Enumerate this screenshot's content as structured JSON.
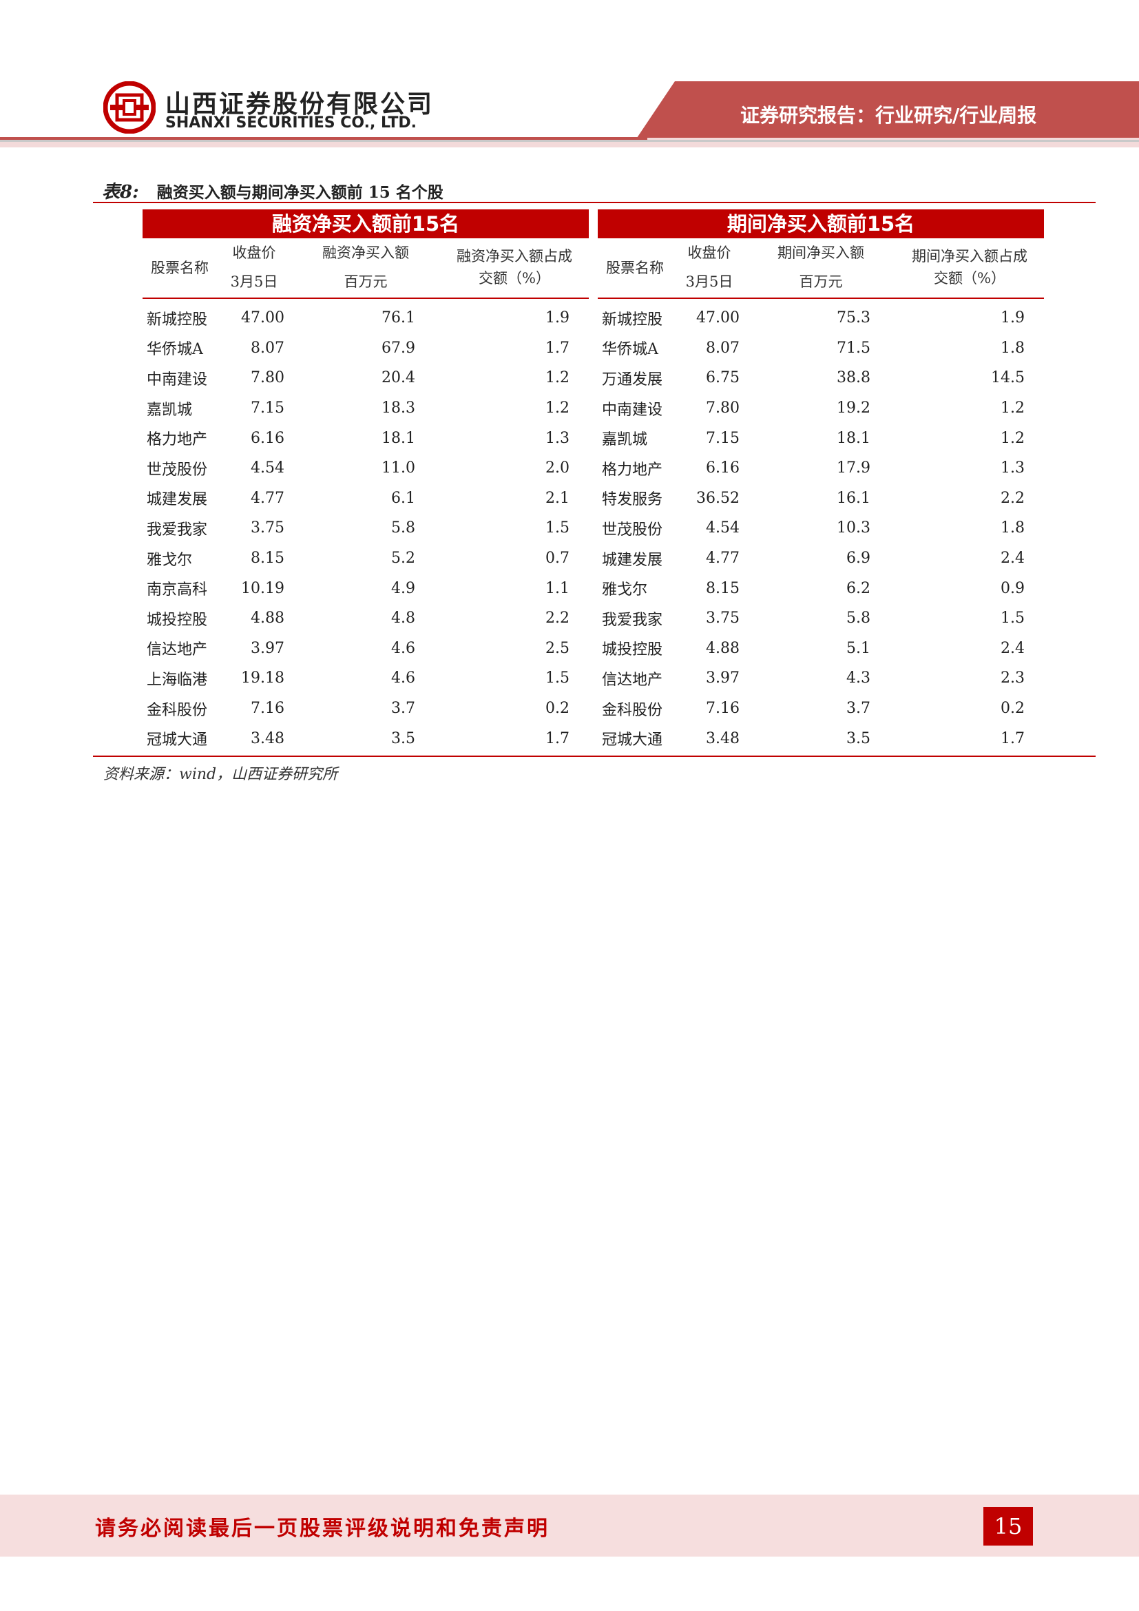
{
  "header": {
    "company_cn": "山西证券股份有限公司",
    "company_en": "SHANXI SECURITIES CO., LTD.",
    "report_type": "证券研究报告：行业研究/行业周报",
    "brand_color": "#c00000"
  },
  "caption": {
    "label": "表8:",
    "title": "融资买入额与期间净买入额前 15 名个股"
  },
  "left_table": {
    "title": "融资净买入额前15名",
    "headers": {
      "name": "股票名称",
      "price": "收盘价",
      "price_date": "3月5日",
      "buy": "融资净买入额",
      "buy_unit": "百万元",
      "ratio_line1": "融资净买入额占成",
      "ratio_line2": "交额（%）"
    },
    "rows": [
      {
        "name": "新城控股",
        "price": "47.00",
        "buy": "76.1",
        "ratio": "1.9"
      },
      {
        "name": "华侨城A",
        "price": "8.07",
        "buy": "67.9",
        "ratio": "1.7"
      },
      {
        "name": "中南建设",
        "price": "7.80",
        "buy": "20.4",
        "ratio": "1.2"
      },
      {
        "name": "嘉凯城",
        "price": "7.15",
        "buy": "18.3",
        "ratio": "1.2"
      },
      {
        "name": "格力地产",
        "price": "6.16",
        "buy": "18.1",
        "ratio": "1.3"
      },
      {
        "name": "世茂股份",
        "price": "4.54",
        "buy": "11.0",
        "ratio": "2.0"
      },
      {
        "name": "城建发展",
        "price": "4.77",
        "buy": "6.1",
        "ratio": "2.1"
      },
      {
        "name": "我爱我家",
        "price": "3.75",
        "buy": "5.8",
        "ratio": "1.5"
      },
      {
        "name": "雅戈尔",
        "price": "8.15",
        "buy": "5.2",
        "ratio": "0.7"
      },
      {
        "name": "南京高科",
        "price": "10.19",
        "buy": "4.9",
        "ratio": "1.1"
      },
      {
        "name": "城投控股",
        "price": "4.88",
        "buy": "4.8",
        "ratio": "2.2"
      },
      {
        "name": "信达地产",
        "price": "3.97",
        "buy": "4.6",
        "ratio": "2.5"
      },
      {
        "name": "上海临港",
        "price": "19.18",
        "buy": "4.6",
        "ratio": "1.5"
      },
      {
        "name": "金科股份",
        "price": "7.16",
        "buy": "3.7",
        "ratio": "0.2"
      },
      {
        "name": "冠城大通",
        "price": "3.48",
        "buy": "3.5",
        "ratio": "1.7"
      }
    ]
  },
  "right_table": {
    "title": "期间净买入额前15名",
    "headers": {
      "name": "股票名称",
      "price": "收盘价",
      "price_date": "3月5日",
      "buy": "期间净买入额",
      "buy_unit": "百万元",
      "ratio_line1": "期间净买入额占成",
      "ratio_line2": "交额（%）"
    },
    "rows": [
      {
        "name": "新城控股",
        "price": "47.00",
        "buy": "75.3",
        "ratio": "1.9"
      },
      {
        "name": "华侨城A",
        "price": "8.07",
        "buy": "71.5",
        "ratio": "1.8"
      },
      {
        "name": "万通发展",
        "price": "6.75",
        "buy": "38.8",
        "ratio": "14.5"
      },
      {
        "name": "中南建设",
        "price": "7.80",
        "buy": "19.2",
        "ratio": "1.2"
      },
      {
        "name": "嘉凯城",
        "price": "7.15",
        "buy": "18.1",
        "ratio": "1.2"
      },
      {
        "name": "格力地产",
        "price": "6.16",
        "buy": "17.9",
        "ratio": "1.3"
      },
      {
        "name": "特发服务",
        "price": "36.52",
        "buy": "16.1",
        "ratio": "2.2"
      },
      {
        "name": "世茂股份",
        "price": "4.54",
        "buy": "10.3",
        "ratio": "1.8"
      },
      {
        "name": "城建发展",
        "price": "4.77",
        "buy": "6.9",
        "ratio": "2.4"
      },
      {
        "name": "雅戈尔",
        "price": "8.15",
        "buy": "6.2",
        "ratio": "0.9"
      },
      {
        "name": "我爱我家",
        "price": "3.75",
        "buy": "5.8",
        "ratio": "1.5"
      },
      {
        "name": "城投控股",
        "price": "4.88",
        "buy": "5.1",
        "ratio": "2.4"
      },
      {
        "name": "信达地产",
        "price": "3.97",
        "buy": "4.3",
        "ratio": "2.3"
      },
      {
        "name": "金科股份",
        "price": "7.16",
        "buy": "3.7",
        "ratio": "0.2"
      },
      {
        "name": "冠城大通",
        "price": "3.48",
        "buy": "3.5",
        "ratio": "1.7"
      }
    ]
  },
  "source": "资料来源：wind，山西证券研究所",
  "footer": {
    "disclaimer": "请务必阅读最后一页股票评级说明和免责声明",
    "page_number": "15"
  }
}
